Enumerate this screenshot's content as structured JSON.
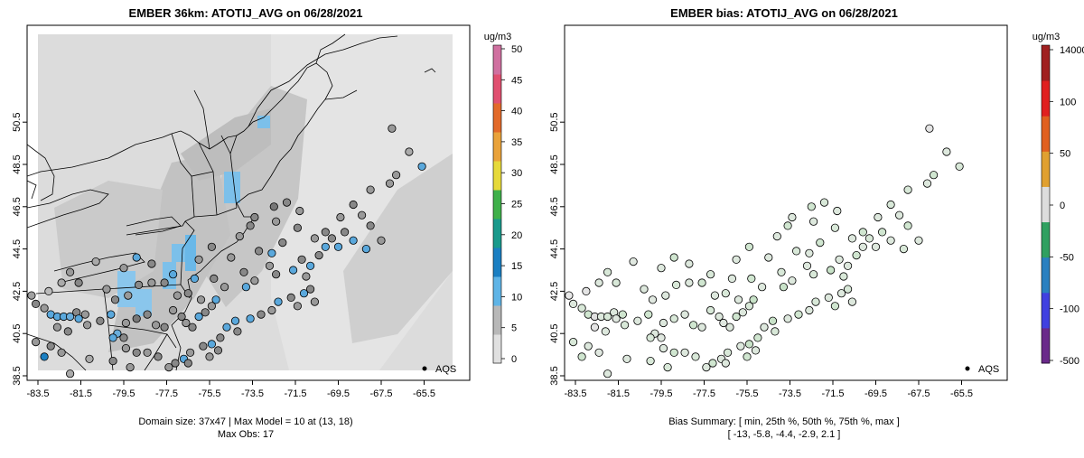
{
  "panels": [
    {
      "title": "EMBER 36km: ATOTIJ_AVG on 06/28/2021",
      "x_ticks": [
        "-83.5",
        "-81.5",
        "-79.5",
        "-77.5",
        "-75.5",
        "-73.5",
        "-71.5",
        "-69.5",
        "-67.5",
        "-65.5"
      ],
      "y_ticks": [
        "38.5",
        "40.5",
        "42.5",
        "44.5",
        "46.5",
        "48.5",
        "50.5"
      ],
      "legend_label": "AQS",
      "colorbar": {
        "unit": "ug/m3",
        "ticks": [
          "0",
          "5",
          "10",
          "15",
          "20",
          "25",
          "30",
          "35",
          "40",
          "45",
          "50"
        ],
        "colors": [
          "#e0e0e0",
          "#b8b8b8",
          "#5fb4e6",
          "#1b7fc2",
          "#1a9a8c",
          "#3fb04a",
          "#e6d93a",
          "#e9a23a",
          "#e26a2a",
          "#e05070",
          "#d070a0"
        ]
      },
      "footer_line1": "Domain size: 37x47 | Max Model = 10 at (13, 18)",
      "footer_line2": "Max Obs: 17"
    },
    {
      "title": "EMBER bias: ATOTIJ_AVG on 06/28/2021",
      "x_ticks": [
        "-83.5",
        "-81.5",
        "-79.5",
        "-77.5",
        "-75.5",
        "-73.5",
        "-71.5",
        "-69.5",
        "-67.5",
        "-65.5"
      ],
      "y_ticks": [
        "38.5",
        "40.5",
        "42.5",
        "44.5",
        "46.5",
        "48.5",
        "50.5"
      ],
      "legend_label": "AQS",
      "colorbar": {
        "unit": "ug/m3",
        "ticks": [
          "-500",
          "-100",
          "-50",
          "0",
          "50",
          "100",
          "14000"
        ],
        "colors": [
          "#6a2a8a",
          "#4040e0",
          "#2a80c0",
          "#30a060",
          "#dddddd",
          "#e0a030",
          "#e06020",
          "#e02020",
          "#a02020"
        ]
      },
      "footer_line1": "Bias Summary: [ min, 25th %, 50th %, 75th %, max ]",
      "footer_line2": "[ -13,   -5.8,   -4.4,   -2.9,   2.1 ]"
    }
  ],
  "stations_left": [
    [
      -83.8,
      42.3,
      "#a0a0a0"
    ],
    [
      -83.6,
      41.9,
      "#888"
    ],
    [
      -83.2,
      41.7,
      "#999"
    ],
    [
      -82.9,
      41.4,
      "#5aa8dc"
    ],
    [
      -82.6,
      41.3,
      "#5aa8dc"
    ],
    [
      -82.3,
      41.3,
      "#5aa8dc"
    ],
    [
      -82.0,
      41.3,
      "#6aaedc"
    ],
    [
      -81.7,
      41.5,
      "#888"
    ],
    [
      -81.3,
      41.4,
      "#999"
    ],
    [
      -81.6,
      41.2,
      "#5aa8dc"
    ],
    [
      -82.6,
      40.8,
      "#999"
    ],
    [
      -82.1,
      40.6,
      "#888"
    ],
    [
      -81.2,
      40.9,
      "#999"
    ],
    [
      -80.6,
      41.1,
      "#888"
    ],
    [
      -80.1,
      41.4,
      "#5aa8dc"
    ],
    [
      -79.8,
      40.5,
      "#6aaedc"
    ],
    [
      -80.0,
      40.3,
      "#5aa8dc"
    ],
    [
      -79.5,
      40.3,
      "#888"
    ],
    [
      -79.4,
      41.0,
      "#999"
    ],
    [
      -78.9,
      41.2,
      "#777"
    ],
    [
      -78.4,
      41.4,
      "#888"
    ],
    [
      -78.0,
      40.9,
      "#999"
    ],
    [
      -77.6,
      40.8,
      "#888"
    ],
    [
      -77.2,
      41.6,
      "#999"
    ],
    [
      -76.8,
      41.3,
      "#888"
    ],
    [
      -76.6,
      41.0,
      "#999"
    ],
    [
      -76.3,
      40.8,
      "#888"
    ],
    [
      -76.0,
      41.3,
      "#5aa8dc"
    ],
    [
      -75.7,
      41.5,
      "#888"
    ],
    [
      -75.4,
      41.8,
      "#999"
    ],
    [
      -75.2,
      42.1,
      "#5aa8dc"
    ],
    [
      -75.9,
      42.1,
      "#999"
    ],
    [
      -76.5,
      42.4,
      "#888"
    ],
    [
      -77.0,
      42.3,
      "#999"
    ],
    [
      -77.6,
      42.9,
      "#888"
    ],
    [
      -78.2,
      42.9,
      "#999"
    ],
    [
      -78.8,
      42.8,
      "#888"
    ],
    [
      -79.3,
      42.3,
      "#999"
    ],
    [
      -79.9,
      42.1,
      "#888"
    ],
    [
      -80.3,
      42.6,
      "#999"
    ],
    [
      -81.6,
      42.9,
      "#888"
    ],
    [
      -82.4,
      42.9,
      "#aaa"
    ],
    [
      -83.0,
      42.5,
      "#bbb"
    ],
    [
      -82.0,
      43.4,
      "#999"
    ],
    [
      -80.8,
      43.9,
      "#aaa"
    ],
    [
      -79.5,
      43.6,
      "#999"
    ],
    [
      -78.9,
      44.1,
      "#5aa8dc"
    ],
    [
      -78.2,
      43.8,
      "#888"
    ],
    [
      -77.2,
      43.3,
      "#5aa8dc"
    ],
    [
      -76.2,
      43.1,
      "#5aa8dc"
    ],
    [
      -75.3,
      43.1,
      "#888"
    ],
    [
      -74.8,
      42.7,
      "#999"
    ],
    [
      -73.8,
      42.7,
      "#5aa8dc"
    ],
    [
      -73.4,
      43.0,
      "#999"
    ],
    [
      -73.9,
      43.4,
      "#888"
    ],
    [
      -74.5,
      44.1,
      "#999"
    ],
    [
      -75.4,
      44.6,
      "#888"
    ],
    [
      -76.0,
      44.0,
      "#999"
    ],
    [
      -73.2,
      44.4,
      "#888"
    ],
    [
      -72.6,
      44.3,
      "#5aa8dc"
    ],
    [
      -72.1,
      44.8,
      "#888"
    ],
    [
      -72.7,
      43.7,
      "#999"
    ],
    [
      -72.4,
      43.3,
      "#888"
    ],
    [
      -71.6,
      43.5,
      "#5aa8dc"
    ],
    [
      -71.2,
      44.0,
      "#888"
    ],
    [
      -71.0,
      43.2,
      "#999"
    ],
    [
      -70.8,
      43.7,
      "#5aa8dc"
    ],
    [
      -70.4,
      44.2,
      "#888"
    ],
    [
      -70.1,
      44.6,
      "#5aa8dc"
    ],
    [
      -69.8,
      45.0,
      "#888"
    ],
    [
      -69.5,
      44.6,
      "#5aa8dc"
    ],
    [
      -69.2,
      45.3,
      "#888"
    ],
    [
      -68.8,
      44.9,
      "#5aa8dc"
    ],
    [
      -68.2,
      44.5,
      "#5aa8dc"
    ],
    [
      -67.5,
      44.9,
      "#999"
    ],
    [
      -68.0,
      45.6,
      "#888"
    ],
    [
      -68.4,
      46.1,
      "#999"
    ],
    [
      -68.8,
      46.6,
      "#888"
    ],
    [
      -69.4,
      46.0,
      "#999"
    ],
    [
      -70.1,
      45.3,
      "#888"
    ],
    [
      -70.6,
      45.0,
      "#999"
    ],
    [
      -71.4,
      45.5,
      "#888"
    ],
    [
      -72.4,
      45.8,
      "#999"
    ],
    [
      -73.6,
      45.6,
      "#888"
    ],
    [
      -74.1,
      45.1,
      "#999"
    ],
    [
      -71.9,
      46.7,
      "#888"
    ],
    [
      -71.3,
      46.3,
      "#999"
    ],
    [
      -72.5,
      46.5,
      "#777"
    ],
    [
      -73.4,
      46.0,
      "#888"
    ],
    [
      -68.0,
      47.3,
      "#999"
    ],
    [
      -67.1,
      47.6,
      "#999"
    ],
    [
      -66.8,
      48.0,
      "#999"
    ],
    [
      -67.0,
      50.2,
      "#999"
    ],
    [
      -66.2,
      49.1,
      "#aaa"
    ],
    [
      -65.6,
      48.4,
      "#5aa8dc"
    ],
    [
      -74.3,
      41.1,
      "#5aa8dc"
    ],
    [
      -74.7,
      40.8,
      "#5aa8dc"
    ],
    [
      -74.2,
      40.6,
      "#888"
    ],
    [
      -73.6,
      41.2,
      "#5aa8dc"
    ],
    [
      -73.1,
      41.4,
      "#888"
    ],
    [
      -72.6,
      41.6,
      "#999"
    ],
    [
      -72.3,
      42.0,
      "#5aa8dc"
    ],
    [
      -71.7,
      42.2,
      "#888"
    ],
    [
      -71.4,
      41.8,
      "#999"
    ],
    [
      -71.1,
      42.4,
      "#5aa8dc"
    ],
    [
      -70.8,
      42.6,
      "#888"
    ],
    [
      -70.6,
      42.0,
      "#999"
    ],
    [
      -75.0,
      40.3,
      "#888"
    ],
    [
      -75.4,
      40.0,
      "#5aa8dc"
    ],
    [
      -75.8,
      39.9,
      "#888"
    ],
    [
      -76.4,
      39.6,
      "#999"
    ],
    [
      -76.7,
      39.3,
      "#5aa8dc"
    ],
    [
      -77.1,
      39.1,
      "#888"
    ],
    [
      -77.4,
      38.9,
      "#999"
    ],
    [
      -77.9,
      39.4,
      "#888"
    ],
    [
      -78.4,
      39.6,
      "#999"
    ],
    [
      -78.9,
      39.6,
      "#888"
    ],
    [
      -79.4,
      39.8,
      "#999"
    ],
    [
      -80.0,
      39.2,
      "#888"
    ],
    [
      -81.1,
      39.3,
      "#aaa"
    ],
    [
      -82.4,
      39.6,
      "#999"
    ],
    [
      -82.9,
      39.9,
      "#888"
    ],
    [
      -83.6,
      40.1,
      "#999"
    ],
    [
      -83.2,
      39.4,
      "#1b7fc2"
    ],
    [
      -82.0,
      38.6,
      "#aaa"
    ],
    [
      -79.2,
      38.9,
      "#999"
    ],
    [
      -76.5,
      39.1,
      "#888"
    ],
    [
      -75.5,
      39.4,
      "#999"
    ],
    [
      -75.1,
      39.7,
      "#888"
    ]
  ],
  "stations_right": [
    [
      -83.8,
      42.3,
      "#e8e8e8"
    ],
    [
      -83.6,
      41.9,
      "#dde8dd"
    ],
    [
      -83.2,
      41.7,
      "#d8e8d8"
    ],
    [
      -82.9,
      41.4,
      "#d0e6d0"
    ],
    [
      -82.6,
      41.3,
      "#e0e0e0"
    ],
    [
      -82.3,
      41.3,
      "#dde8dd"
    ],
    [
      -82.0,
      41.3,
      "#d8e8d8"
    ],
    [
      -81.7,
      41.5,
      "#dde8dd"
    ],
    [
      -81.3,
      41.4,
      "#cfe5cf"
    ],
    [
      -81.6,
      41.2,
      "#e0e8e0"
    ],
    [
      -82.6,
      40.8,
      "#e4e4e4"
    ],
    [
      -82.1,
      40.6,
      "#dde8dd"
    ],
    [
      -81.2,
      40.9,
      "#d8e8d8"
    ],
    [
      -80.6,
      41.1,
      "#dde8dd"
    ],
    [
      -80.1,
      41.4,
      "#d0e6d0"
    ],
    [
      -79.8,
      40.5,
      "#dde8dd"
    ],
    [
      -80.0,
      40.3,
      "#d8e8d8"
    ],
    [
      -79.5,
      40.3,
      "#e0e8e0"
    ],
    [
      -79.4,
      41.0,
      "#dde8dd"
    ],
    [
      -78.9,
      41.2,
      "#d8e8d8"
    ],
    [
      -78.4,
      41.4,
      "#dde8dd"
    ],
    [
      -78.0,
      40.9,
      "#d0e6d0"
    ],
    [
      -77.6,
      40.8,
      "#dde8dd"
    ],
    [
      -77.2,
      41.6,
      "#d8e8d8"
    ],
    [
      -76.8,
      41.3,
      "#dde8dd"
    ],
    [
      -76.6,
      41.0,
      "#e0e8e0"
    ],
    [
      -76.3,
      40.8,
      "#dde8dd"
    ],
    [
      -76.0,
      41.3,
      "#d0e6d0"
    ],
    [
      -75.7,
      41.5,
      "#dde8dd"
    ],
    [
      -75.4,
      41.8,
      "#d8e8d8"
    ],
    [
      -75.2,
      42.1,
      "#c8e2c8"
    ],
    [
      -75.9,
      42.1,
      "#dde8dd"
    ],
    [
      -76.5,
      42.4,
      "#d8e8d8"
    ],
    [
      -77.0,
      42.3,
      "#dde8dd"
    ],
    [
      -77.6,
      42.9,
      "#d0e6d0"
    ],
    [
      -78.2,
      42.9,
      "#dde8dd"
    ],
    [
      -78.8,
      42.8,
      "#d8e8d8"
    ],
    [
      -79.3,
      42.3,
      "#dde8dd"
    ],
    [
      -79.9,
      42.1,
      "#e0e8e0"
    ],
    [
      -80.3,
      42.6,
      "#dde8dd"
    ],
    [
      -81.6,
      42.9,
      "#d8e8d8"
    ],
    [
      -82.4,
      42.9,
      "#dde8dd"
    ],
    [
      -83.0,
      42.5,
      "#e4e4e4"
    ],
    [
      -82.0,
      43.4,
      "#d8e8d8"
    ],
    [
      -80.8,
      43.9,
      "#e0e8e0"
    ],
    [
      -79.5,
      43.6,
      "#dde8dd"
    ],
    [
      -78.9,
      44.1,
      "#d0e6d0"
    ],
    [
      -78.2,
      43.8,
      "#dde8dd"
    ],
    [
      -77.2,
      43.3,
      "#d8e8d8"
    ],
    [
      -76.2,
      43.1,
      "#dde8dd"
    ],
    [
      -75.3,
      43.1,
      "#d0e6d0"
    ],
    [
      -74.8,
      42.7,
      "#dde8dd"
    ],
    [
      -73.8,
      42.7,
      "#c8e2c8"
    ],
    [
      -73.4,
      43.0,
      "#dde8dd"
    ],
    [
      -73.9,
      43.4,
      "#d8e8d8"
    ],
    [
      -74.5,
      44.1,
      "#dde8dd"
    ],
    [
      -75.4,
      44.6,
      "#d0e6d0"
    ],
    [
      -76.0,
      44.0,
      "#dde8dd"
    ],
    [
      -73.2,
      44.4,
      "#d8e8d8"
    ],
    [
      -72.6,
      44.3,
      "#dde8dd"
    ],
    [
      -72.1,
      44.8,
      "#d0e6d0"
    ],
    [
      -72.7,
      43.7,
      "#dde8dd"
    ],
    [
      -72.4,
      43.3,
      "#d8e8d8"
    ],
    [
      -71.6,
      43.5,
      "#c8e2c8"
    ],
    [
      -71.2,
      44.0,
      "#dde8dd"
    ],
    [
      -71.0,
      43.2,
      "#d8e8d8"
    ],
    [
      -70.8,
      43.7,
      "#dde8dd"
    ],
    [
      -70.4,
      44.2,
      "#d0e6d0"
    ],
    [
      -70.1,
      44.6,
      "#dde8dd"
    ],
    [
      -69.8,
      45.0,
      "#d8e8d8"
    ],
    [
      -69.5,
      44.6,
      "#dde8dd"
    ],
    [
      -69.2,
      45.3,
      "#d0e6d0"
    ],
    [
      -68.8,
      44.9,
      "#dde8dd"
    ],
    [
      -68.2,
      44.5,
      "#d8e8d8"
    ],
    [
      -67.5,
      44.9,
      "#dde8dd"
    ],
    [
      -68.0,
      45.6,
      "#d0e6d0"
    ],
    [
      -68.4,
      46.1,
      "#dde8dd"
    ],
    [
      -68.8,
      46.6,
      "#d8e8d8"
    ],
    [
      -69.4,
      46.0,
      "#dde8dd"
    ],
    [
      -70.1,
      45.3,
      "#d0e6d0"
    ],
    [
      -70.6,
      45.0,
      "#dde8dd"
    ],
    [
      -71.4,
      45.5,
      "#d8e8d8"
    ],
    [
      -72.4,
      45.8,
      "#dde8dd"
    ],
    [
      -73.6,
      45.6,
      "#d0e6d0"
    ],
    [
      -74.1,
      45.1,
      "#dde8dd"
    ],
    [
      -71.9,
      46.7,
      "#d8e8d8"
    ],
    [
      -71.3,
      46.3,
      "#dde8dd"
    ],
    [
      -72.5,
      46.5,
      "#d0e6d0"
    ],
    [
      -73.4,
      46.0,
      "#dde8dd"
    ],
    [
      -68.0,
      47.3,
      "#d8e8d8"
    ],
    [
      -67.1,
      47.6,
      "#dde8dd"
    ],
    [
      -66.8,
      48.0,
      "#d0e6d0"
    ],
    [
      -67.0,
      50.2,
      "#e4e4e4"
    ],
    [
      -66.2,
      49.1,
      "#dde8dd"
    ],
    [
      -65.6,
      48.4,
      "#d8e8d8"
    ],
    [
      -74.3,
      41.1,
      "#c8e2c8"
    ],
    [
      -74.7,
      40.8,
      "#dde8dd"
    ],
    [
      -74.2,
      40.6,
      "#d8e8d8"
    ],
    [
      -73.6,
      41.2,
      "#dde8dd"
    ],
    [
      -73.1,
      41.4,
      "#d0e6d0"
    ],
    [
      -72.6,
      41.6,
      "#dde8dd"
    ],
    [
      -72.3,
      42.0,
      "#d8e8d8"
    ],
    [
      -71.7,
      42.2,
      "#dde8dd"
    ],
    [
      -71.4,
      41.8,
      "#d0e6d0"
    ],
    [
      -71.1,
      42.4,
      "#dde8dd"
    ],
    [
      -70.8,
      42.6,
      "#d8e8d8"
    ],
    [
      -70.6,
      42.0,
      "#dde8dd"
    ],
    [
      -75.0,
      40.3,
      "#d0e6d0"
    ],
    [
      -75.4,
      40.0,
      "#c8e2c8"
    ],
    [
      -75.8,
      39.9,
      "#dde8dd"
    ],
    [
      -76.4,
      39.6,
      "#d8e8d8"
    ],
    [
      -76.7,
      39.3,
      "#dde8dd"
    ],
    [
      -77.1,
      39.1,
      "#d0e6d0"
    ],
    [
      -77.4,
      38.9,
      "#dde8dd"
    ],
    [
      -77.9,
      39.4,
      "#d8e8d8"
    ],
    [
      -78.4,
      39.6,
      "#dde8dd"
    ],
    [
      -78.9,
      39.6,
      "#d0e6d0"
    ],
    [
      -79.4,
      39.8,
      "#dde8dd"
    ],
    [
      -80.0,
      39.2,
      "#d8e8d8"
    ],
    [
      -81.1,
      39.3,
      "#dde8dd"
    ],
    [
      -82.4,
      39.6,
      "#e0e8e0"
    ],
    [
      -82.9,
      39.9,
      "#dde8dd"
    ],
    [
      -83.6,
      40.1,
      "#d8e8d8"
    ],
    [
      -83.2,
      39.4,
      "#cfe5cf"
    ],
    [
      -82.0,
      38.6,
      "#dde8dd"
    ],
    [
      -79.2,
      38.9,
      "#d8e8d8"
    ],
    [
      -76.5,
      39.1,
      "#dde8dd"
    ],
    [
      -75.5,
      39.4,
      "#d0e6d0"
    ],
    [
      -75.1,
      39.7,
      "#dde8dd"
    ]
  ]
}
